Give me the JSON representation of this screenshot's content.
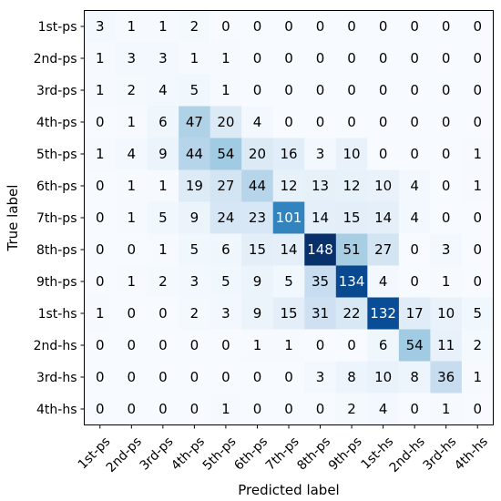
{
  "chart_data": {
    "type": "heatmap",
    "title": "",
    "xlabel": "Predicted label",
    "ylabel": "True label",
    "x_categories": [
      "1st-ps",
      "2nd-ps",
      "3rd-ps",
      "4th-ps",
      "5th-ps",
      "6th-ps",
      "7th-ps",
      "8th-ps",
      "9th-ps",
      "1st-hs",
      "2nd-hs",
      "3rd-hs",
      "4th-hs"
    ],
    "y_categories": [
      "1st-ps",
      "2nd-ps",
      "3rd-ps",
      "4th-ps",
      "5th-ps",
      "6th-ps",
      "7th-ps",
      "8th-ps",
      "9th-ps",
      "1st-hs",
      "2nd-hs",
      "3rd-hs",
      "4th-hs"
    ],
    "values": [
      [
        3,
        1,
        1,
        2,
        0,
        0,
        0,
        0,
        0,
        0,
        0,
        0,
        0
      ],
      [
        1,
        3,
        3,
        1,
        1,
        0,
        0,
        0,
        0,
        0,
        0,
        0,
        0
      ],
      [
        1,
        2,
        4,
        5,
        1,
        0,
        0,
        0,
        0,
        0,
        0,
        0,
        0
      ],
      [
        0,
        1,
        6,
        47,
        20,
        4,
        0,
        0,
        0,
        0,
        0,
        0,
        0
      ],
      [
        1,
        4,
        9,
        44,
        54,
        20,
        16,
        3,
        10,
        0,
        0,
        0,
        1
      ],
      [
        0,
        1,
        1,
        19,
        27,
        44,
        12,
        13,
        12,
        10,
        4,
        0,
        1
      ],
      [
        0,
        1,
        5,
        9,
        24,
        23,
        101,
        14,
        15,
        14,
        4,
        0,
        0
      ],
      [
        0,
        0,
        1,
        5,
        6,
        15,
        14,
        148,
        51,
        27,
        0,
        3,
        0
      ],
      [
        0,
        1,
        2,
        3,
        5,
        9,
        5,
        35,
        134,
        4,
        0,
        1,
        0
      ],
      [
        1,
        0,
        0,
        2,
        3,
        9,
        15,
        31,
        22,
        132,
        17,
        10,
        5
      ],
      [
        0,
        0,
        0,
        0,
        0,
        1,
        1,
        0,
        0,
        6,
        54,
        11,
        2
      ],
      [
        0,
        0,
        0,
        0,
        0,
        0,
        0,
        3,
        8,
        10,
        8,
        36,
        1
      ],
      [
        0,
        0,
        0,
        0,
        1,
        0,
        0,
        0,
        2,
        4,
        0,
        1,
        0
      ]
    ],
    "colormap": "Blues",
    "vmin": 0,
    "vmax": 148,
    "grid": false,
    "legend": "none"
  }
}
